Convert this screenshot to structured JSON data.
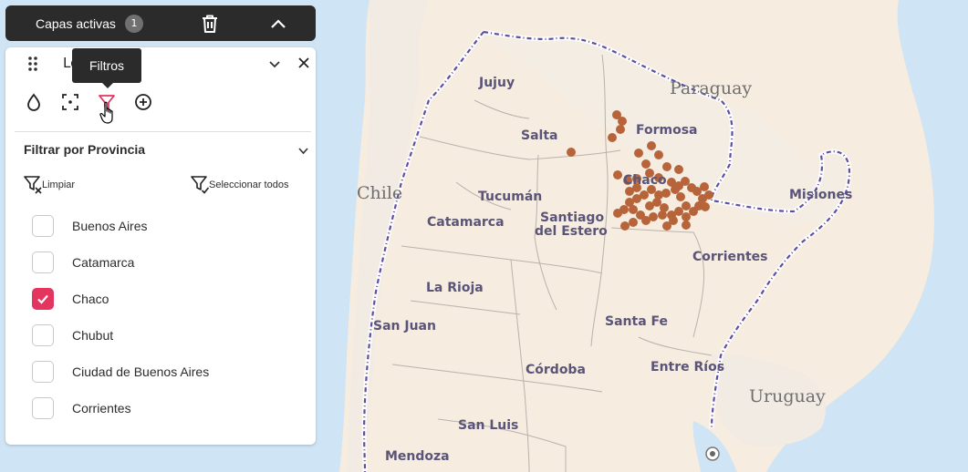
{
  "top_bar": {
    "title": "Capas activas",
    "count": "1"
  },
  "layer": {
    "name": "Lo"
  },
  "tooltip": "Filtros",
  "filter": {
    "title": "Filtrar por Provincia",
    "clear_label": "Limpiar",
    "select_all_label": "Seleccionar todos",
    "options": [
      {
        "label": "Buenos Aires",
        "checked": false
      },
      {
        "label": "Catamarca",
        "checked": false
      },
      {
        "label": "Chaco",
        "checked": true
      },
      {
        "label": "Chubut",
        "checked": false
      },
      {
        "label": "Ciudad de Buenos Aires",
        "checked": false
      },
      {
        "label": "Corrientes",
        "checked": false
      }
    ]
  },
  "map": {
    "countries": [
      "Paraguay",
      "Chile",
      "Uruguay"
    ],
    "provinces": [
      "Jujuy",
      "Salta",
      "Formosa",
      "Chaco",
      "Tucumán",
      "Catamarca",
      "Santiago",
      "del Estero",
      "Misiones",
      "Corrientes",
      "La Rioja",
      "San Juan",
      "Santa Fe",
      "Córdoba",
      "Entre Ríos",
      "San Luis",
      "Mendoza"
    ],
    "colors": {
      "water": "#cfe4f5",
      "land": "#f6ecdf",
      "border": "#5e4ea3",
      "points": "#b7643a",
      "accent": "#e4355f"
    }
  }
}
